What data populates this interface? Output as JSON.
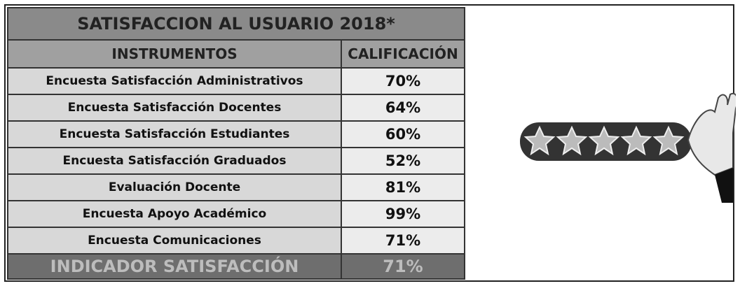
{
  "table": {
    "title": "SATISFACCION AL USUARIO 2018*",
    "headers": [
      "INSTRUMENTOS",
      "CALIFICACIÓN"
    ],
    "rows": [
      [
        "Encuesta Satisfacción Administrativos",
        "70%"
      ],
      [
        "Encuesta Satisfacción Docentes",
        "64%"
      ],
      [
        "Encuesta Satisfacción Estudiantes",
        "60%"
      ],
      [
        "Encuesta Satisfacción Graduados",
        "52%"
      ],
      [
        "Evaluación Docente",
        "81%"
      ],
      [
        "Encuesta Apoyo Académico",
        "99%"
      ],
      [
        "Encuesta Comunicaciones",
        "71%"
      ]
    ],
    "footer": [
      "INDICADOR SATISFACCIÓN",
      "71%"
    ]
  }
}
